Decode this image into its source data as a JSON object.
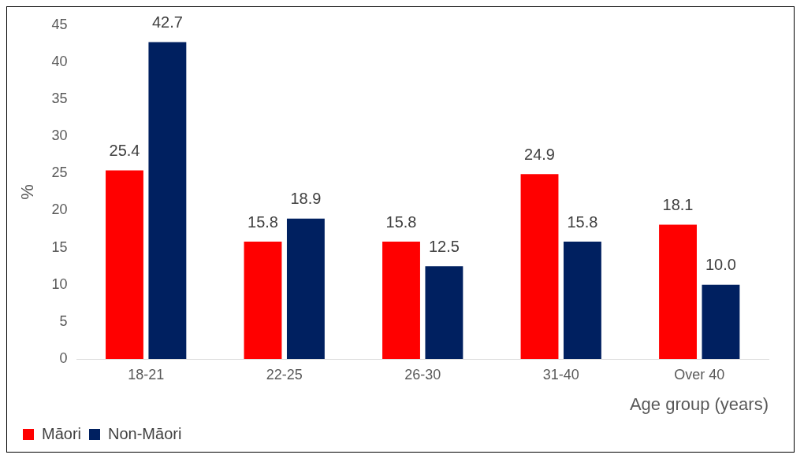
{
  "chart_data": {
    "type": "bar",
    "xlabel": "Age group (years)",
    "ylabel": "%",
    "categories": [
      "18-21",
      "22-25",
      "26-30",
      "31-40",
      "Over 40"
    ],
    "series": [
      {
        "name": "Māori",
        "color": "#ff0000",
        "values": [
          25.4,
          15.8,
          15.8,
          24.9,
          18.1
        ],
        "value_labels": [
          "25.4",
          "15.8",
          "15.8",
          "24.9",
          "18.1"
        ]
      },
      {
        "name": "Non-Māori",
        "color": "#002060",
        "values": [
          42.7,
          18.9,
          12.5,
          15.8,
          10.0
        ],
        "value_labels": [
          "42.7",
          "18.9",
          "12.5",
          "15.8",
          "10.0"
        ]
      }
    ],
    "ylim": [
      0,
      45
    ],
    "yticks": [
      0,
      5,
      10,
      15,
      20,
      25,
      30,
      35,
      40,
      45
    ],
    "grid": false,
    "legend": "bottom left"
  }
}
